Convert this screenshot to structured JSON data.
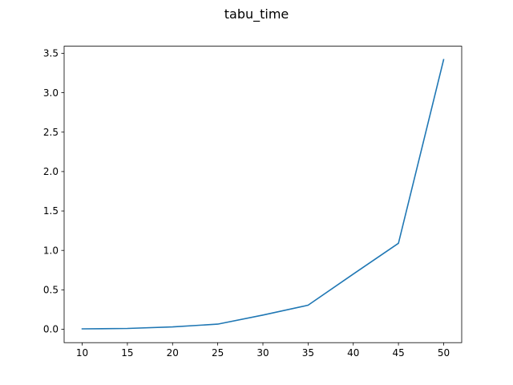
{
  "chart_data": {
    "type": "line",
    "title": "tabu_time",
    "xlabel": "",
    "ylabel": "",
    "x": [
      10,
      15,
      20,
      25,
      30,
      35,
      40,
      45,
      50
    ],
    "series": [
      {
        "values": [
          0.005,
          0.01,
          0.03,
          0.065,
          0.18,
          0.305,
          0.7,
          1.09,
          3.42
        ],
        "color": "#1f77b4"
      }
    ],
    "xlim": [
      8,
      52
    ],
    "ylim": [
      -0.17,
      3.59
    ],
    "xticks": [
      10,
      15,
      20,
      25,
      30,
      35,
      40,
      45,
      50
    ],
    "yticks": [
      0.0,
      0.5,
      1.0,
      1.5,
      2.0,
      2.5,
      3.0,
      3.5
    ],
    "xtick_labels": [
      "10",
      "15",
      "20",
      "25",
      "30",
      "35",
      "40",
      "45",
      "50"
    ],
    "ytick_labels": [
      "0.0",
      "0.5",
      "1.0",
      "1.5",
      "2.0",
      "2.5",
      "3.0",
      "3.5"
    ],
    "grid": false,
    "legend": "none"
  }
}
